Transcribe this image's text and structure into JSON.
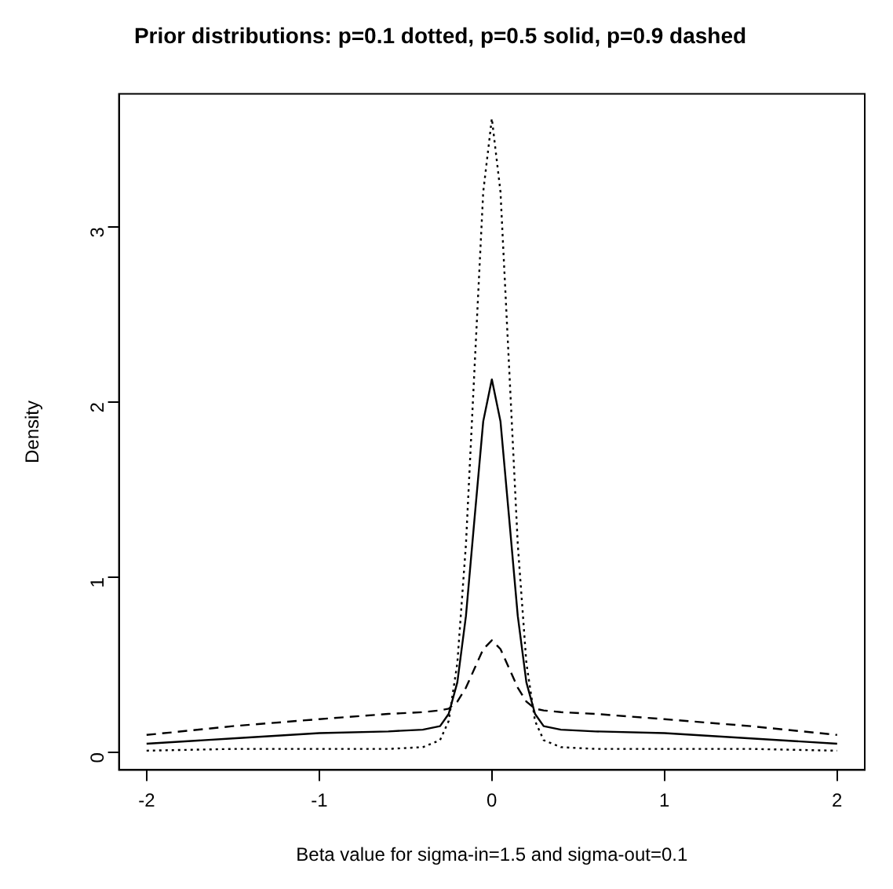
{
  "chart_data": {
    "type": "line",
    "title": "Prior distributions: p=0.1 dotted, p=0.5 solid, p=0.9 dashed",
    "xlabel": "Beta value for sigma-in=1.5 and sigma-out=0.1",
    "ylabel": "Density",
    "x": [
      -2,
      -1.5,
      -1,
      -0.6,
      -0.4,
      -0.3,
      -0.25,
      -0.2,
      -0.15,
      -0.1,
      -0.05,
      0,
      0.05,
      0.1,
      0.15,
      0.2,
      0.25,
      0.3,
      0.4,
      0.6,
      1,
      1.5,
      2
    ],
    "series": [
      {
        "color": "#000000",
        "line_style": "dotted",
        "values": [
          0.01,
          0.02,
          0.02,
          0.02,
          0.03,
          0.07,
          0.18,
          0.51,
          1.19,
          2.2,
          3.2,
          3.62,
          3.2,
          2.2,
          1.19,
          0.51,
          0.18,
          0.07,
          0.03,
          0.02,
          0.02,
          0.02,
          0.01
        ]
      },
      {
        "color": "#000000",
        "line_style": "solid",
        "values": [
          0.05,
          0.08,
          0.11,
          0.12,
          0.13,
          0.15,
          0.22,
          0.4,
          0.78,
          1.34,
          1.89,
          2.13,
          1.89,
          1.34,
          0.78,
          0.4,
          0.22,
          0.15,
          0.13,
          0.12,
          0.11,
          0.08,
          0.05
        ]
      },
      {
        "color": "#000000",
        "line_style": "dashed",
        "values": [
          0.1,
          0.15,
          0.19,
          0.22,
          0.23,
          0.24,
          0.25,
          0.29,
          0.37,
          0.48,
          0.59,
          0.64,
          0.59,
          0.48,
          0.37,
          0.29,
          0.25,
          0.24,
          0.23,
          0.22,
          0.19,
          0.15,
          0.1
        ]
      }
    ],
    "xlim": [
      -2.16,
      2.16
    ],
    "ylim": [
      -0.1,
      3.76
    ],
    "xticks": [
      -2,
      -1,
      0,
      1,
      2
    ],
    "yticks": [
      0,
      1,
      2,
      3
    ],
    "grid": false,
    "legend": false,
    "marker": "none"
  }
}
